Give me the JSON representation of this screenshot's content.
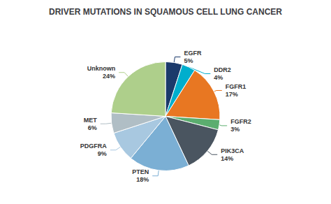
{
  "chart_data": {
    "type": "pie",
    "title": "DRIVER MUTATIONS IN SQUAMOUS CELL LUNG CANCER",
    "categories": [
      "EGFR",
      "DDR2",
      "FGFR1",
      "FGFR2",
      "PIK3CA",
      "PTEN",
      "PDGFRA",
      "MET",
      "Unknown"
    ],
    "values": [
      5,
      4,
      17,
      3,
      14,
      18,
      9,
      6,
      24
    ],
    "value_labels": [
      "5%",
      "4%",
      "17%",
      "3%",
      "14%",
      "18%",
      "9%",
      "6%",
      "24%"
    ],
    "colors": [
      "#1B3A6B",
      "#00AECD",
      "#E87722",
      "#5BAD6F",
      "#4A5560",
      "#7BAFD4",
      "#A8C8E0",
      "#B0BEC5",
      "#AECF8B"
    ],
    "data_labels": true
  }
}
